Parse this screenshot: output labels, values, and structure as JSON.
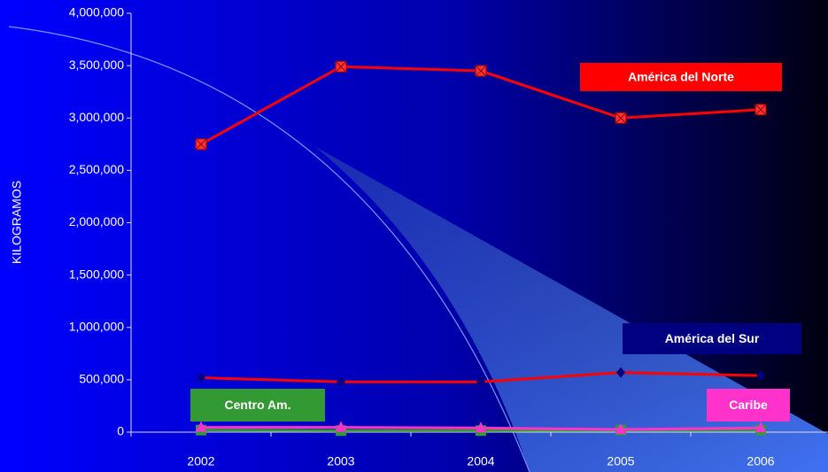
{
  "chart_data": {
    "type": "line",
    "y_label": "KILOGRAMOS",
    "categories": [
      "2002",
      "2003",
      "2004",
      "2005",
      "2006"
    ],
    "series": [
      {
        "name": "América del Norte",
        "color": "#ff0000",
        "marker": "square-x",
        "marker_color": "#ff3333",
        "label_bg": "#ff0000",
        "values": [
          2750000,
          3490000,
          3450000,
          3000000,
          3080000
        ]
      },
      {
        "name": "América del Sur",
        "color": "#ff0000",
        "marker": "diamond",
        "marker_color": "#000080",
        "label_bg": "#000080",
        "values": [
          520000,
          480000,
          480000,
          570000,
          540000
        ]
      },
      {
        "name": "Centro Am.",
        "color": "#339933",
        "marker": "square",
        "marker_color": "#339933",
        "label_bg": "#339933",
        "values": [
          20000,
          15000,
          15000,
          20000,
          20000
        ]
      },
      {
        "name": "Caribe",
        "color": "#ff33cc",
        "marker": "triangle",
        "marker_color": "#ff33cc",
        "label_bg": "#ff33cc",
        "values": [
          45000,
          45000,
          40000,
          25000,
          40000
        ]
      }
    ],
    "ylim": [
      0,
      4000000
    ],
    "yticks": [
      0,
      {
        "value": 500000,
        "label": "500,000"
      },
      {
        "value": 1000000,
        "label": "1,000,000"
      },
      {
        "value": 1500000,
        "label": "1,500,000"
      },
      {
        "value": 2000000,
        "label": "2,000,000"
      },
      {
        "value": 2500000,
        "label": "2,500,000"
      },
      {
        "value": 3000000,
        "label": "3,000,000"
      },
      {
        "value": 3500000,
        "label": "3,500,000"
      },
      {
        "value": 4000000,
        "label": "4,000,000"
      }
    ],
    "grid": false
  }
}
